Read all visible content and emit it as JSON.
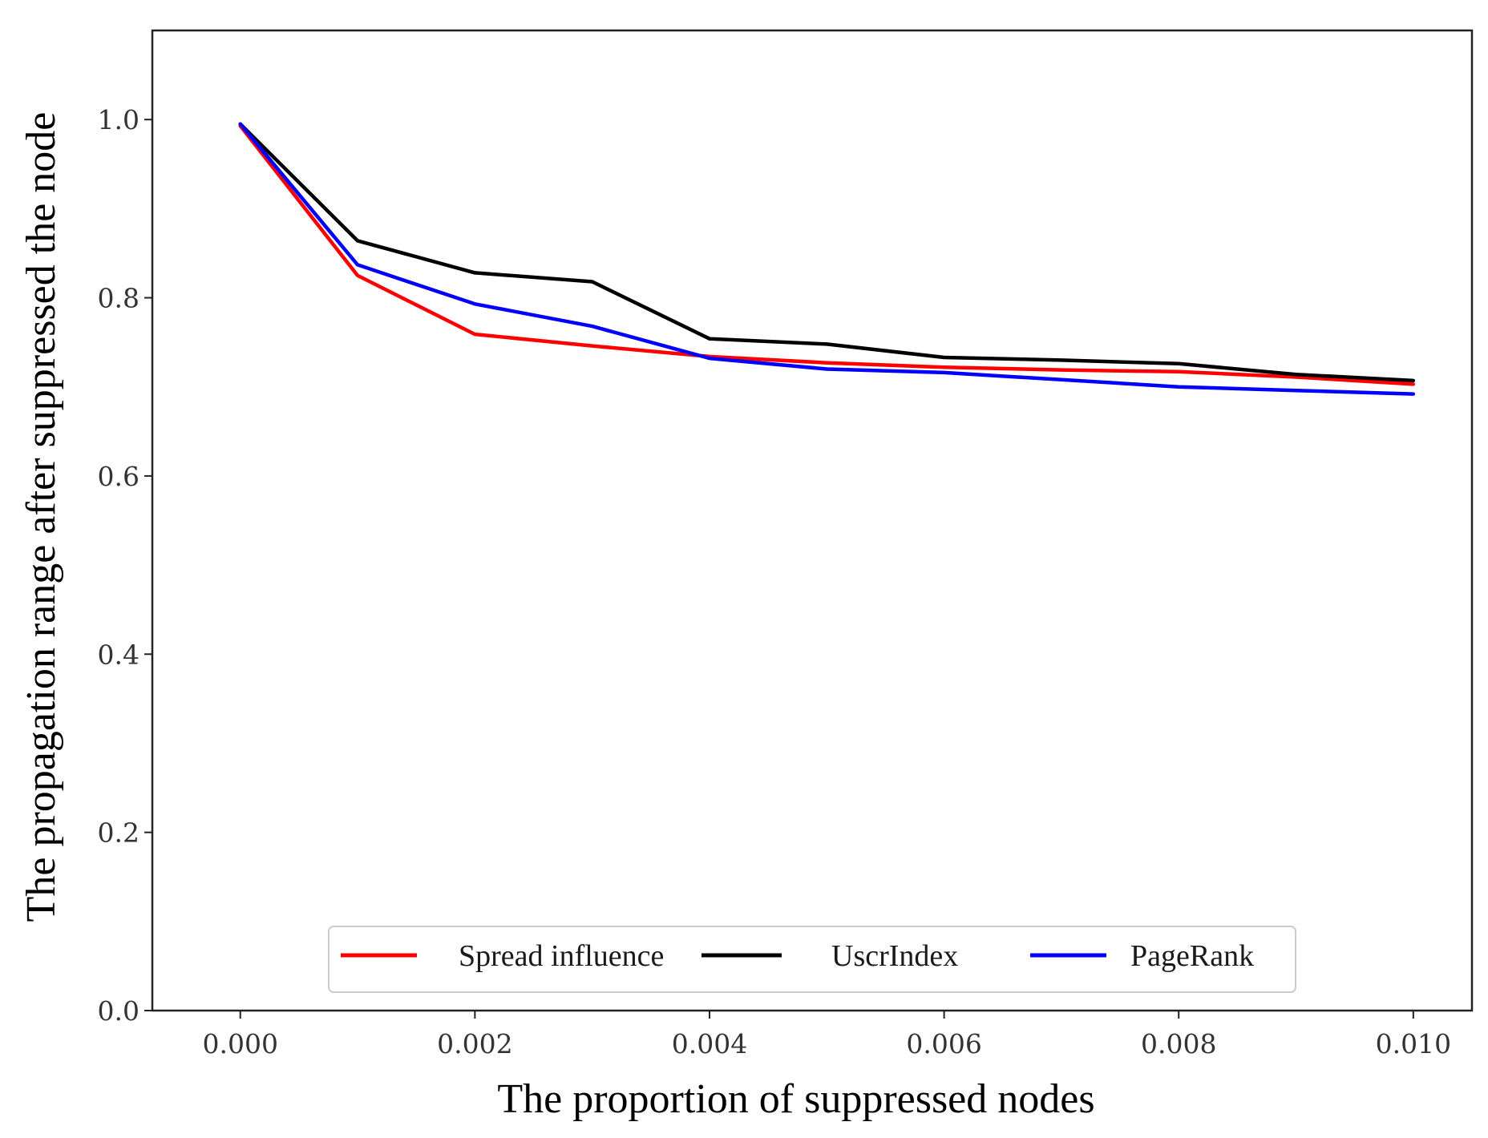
{
  "chart_data": {
    "type": "line",
    "title": "",
    "xlabel": "The proportion of suppressed nodes",
    "ylabel": "The propagation range after suppressed the node",
    "xlim": [
      -0.00075,
      0.0105
    ],
    "ylim": [
      0.0,
      1.1
    ],
    "xticks": [
      0.0,
      0.002,
      0.004,
      0.006,
      0.008,
      0.01
    ],
    "xtick_labels": [
      "0.000",
      "0.002",
      "0.004",
      "0.006",
      "0.008",
      "0.010"
    ],
    "yticks": [
      0.0,
      0.2,
      0.4,
      0.6,
      0.8,
      1.0
    ],
    "ytick_labels": [
      "0.0",
      "0.2",
      "0.4",
      "0.6",
      "0.8",
      "1.0"
    ],
    "grid": false,
    "legend_position": "bottom-center",
    "x": [
      0.0,
      0.001,
      0.002,
      0.003,
      0.004,
      0.005,
      0.006,
      0.007,
      0.008,
      0.009,
      0.01
    ],
    "series": [
      {
        "name": "Spread influence",
        "color": "#ff0000",
        "values": [
          0.993,
          0.825,
          0.759,
          0.746,
          0.734,
          0.727,
          0.722,
          0.719,
          0.717,
          0.711,
          0.703
        ]
      },
      {
        "name": "UscrIndex",
        "color": "#000000",
        "values": [
          0.995,
          0.864,
          0.828,
          0.818,
          0.754,
          0.748,
          0.733,
          0.73,
          0.726,
          0.714,
          0.707
        ]
      },
      {
        "name": "PageRank",
        "color": "#0000ff",
        "values": [
          0.995,
          0.837,
          0.793,
          0.768,
          0.732,
          0.72,
          0.716,
          0.708,
          0.7,
          0.696,
          0.692
        ]
      }
    ]
  }
}
